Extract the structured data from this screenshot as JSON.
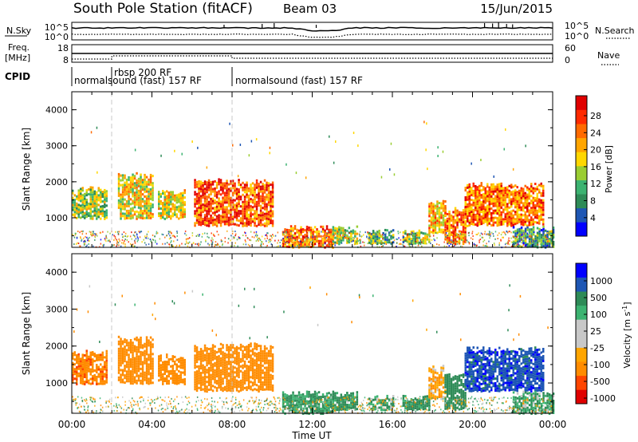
{
  "header": {
    "title": "South Pole Station (fitACF)",
    "beam": "Beam 03",
    "date": "15/Jun/2015"
  },
  "summary_panels": {
    "nsky": {
      "left_label": "N.Sky",
      "right_label": "N.Search",
      "left_ticks": [
        "10^5",
        "10^0"
      ],
      "right_ticks": [
        "10^5",
        "10^0"
      ]
    },
    "freq": {
      "left_label_1": "Freq.",
      "left_label_2": "[MHz]",
      "left_ticks": [
        "18",
        "8"
      ],
      "right_label": "Nave",
      "right_ticks": [
        "60",
        "0"
      ]
    },
    "cpid": {
      "label": "CPID",
      "segments": [
        {
          "text": "normalsound (fast) 157 RF",
          "start_hour": 0
        },
        {
          "text": "rbsp 200 RF",
          "start_hour": 2
        },
        {
          "text": "normalsound (fast) 157 RF",
          "start_hour": 8
        }
      ]
    }
  },
  "chart_data": [
    {
      "type": "heatmap",
      "name": "power",
      "ylabel": "Slant Range [km]",
      "ylim": [
        180,
        4500
      ],
      "yticks": [
        "4000",
        "3000",
        "2000",
        "1000"
      ],
      "xlim": [
        0,
        24
      ],
      "colorbar_label": "Power [dB]",
      "colorbar_ticks": [
        "28",
        "24",
        "20",
        "16",
        "12",
        "8",
        "4"
      ],
      "colorbar_colors": [
        "#0000ff",
        "#1e56b4",
        "#2e8b57",
        "#3cb371",
        "#9acd32",
        "#ffd700",
        "#ffa500",
        "#ff6a00",
        "#ff2a00",
        "#e00000"
      ],
      "dashed_lines_hour": [
        2,
        8
      ],
      "regions": [
        {
          "x": [
            0.0,
            1.7
          ],
          "y": [
            1000,
            1900
          ],
          "value": 14
        },
        {
          "x": [
            2.3,
            4.0
          ],
          "y": [
            1000,
            2300
          ],
          "value": 17
        },
        {
          "x": [
            4.3,
            5.6
          ],
          "y": [
            1000,
            1800
          ],
          "value": 16
        },
        {
          "x": [
            6.1,
            10.0
          ],
          "y": [
            800,
            2100
          ],
          "value": 24
        },
        {
          "x": [
            10.5,
            13.0
          ],
          "y": [
            200,
            800
          ],
          "value": 22
        },
        {
          "x": [
            13.0,
            14.2
          ],
          "y": [
            300,
            800
          ],
          "value": 14
        },
        {
          "x": [
            14.8,
            16.0
          ],
          "y": [
            300,
            700
          ],
          "value": 10
        },
        {
          "x": [
            16.5,
            17.8
          ],
          "y": [
            300,
            700
          ],
          "value": 12
        },
        {
          "x": [
            17.8,
            18.6
          ],
          "y": [
            600,
            1500
          ],
          "value": 19
        },
        {
          "x": [
            18.6,
            19.6
          ],
          "y": [
            300,
            1300
          ],
          "value": 22
        },
        {
          "x": [
            19.6,
            23.5
          ],
          "y": [
            800,
            2000
          ],
          "value": 22
        },
        {
          "x": [
            22.0,
            24.0
          ],
          "y": [
            200,
            800
          ],
          "value": 9
        }
      ]
    },
    {
      "type": "heatmap",
      "name": "velocity",
      "ylabel": "Slant Range [km]",
      "ylim": [
        180,
        4500
      ],
      "yticks": [
        "4000",
        "3000",
        "2000",
        "1000"
      ],
      "xlim": [
        0,
        24
      ],
      "xlabel": "Time UT",
      "xticks": [
        "00:00",
        "04:00",
        "08:00",
        "12:00",
        "16:00",
        "20:00",
        "00:00"
      ],
      "colorbar_label": "Velocity [m s",
      "colorbar_label_sup": "-1",
      "colorbar_label_end": "]",
      "colorbar_ticks": [
        "1000",
        "500",
        "100",
        "25",
        "-25",
        "-100",
        "-500",
        "-1000"
      ],
      "colorbar_colors": [
        "#e00000",
        "#ff4500",
        "#ff8c00",
        "#ffa500",
        "#c8c8c8",
        "#c8c8c8",
        "#3cb371",
        "#2e8b57",
        "#1e56b4",
        "#0000ff"
      ],
      "dashed_lines_hour": [
        2,
        8
      ],
      "regions": [
        {
          "x": [
            0.0,
            1.7
          ],
          "y": [
            1000,
            1900
          ],
          "value": -400
        },
        {
          "x": [
            2.3,
            4.0
          ],
          "y": [
            1000,
            2300
          ],
          "value": -200
        },
        {
          "x": [
            4.3,
            5.6
          ],
          "y": [
            1000,
            1800
          ],
          "value": -200
        },
        {
          "x": [
            6.1,
            10.0
          ],
          "y": [
            800,
            2100
          ],
          "value": -300
        },
        {
          "x": [
            10.5,
            13.0
          ],
          "y": [
            200,
            800
          ],
          "value": 120
        },
        {
          "x": [
            13.0,
            14.2
          ],
          "y": [
            300,
            800
          ],
          "value": 150
        },
        {
          "x": [
            14.8,
            16.0
          ],
          "y": [
            300,
            700
          ],
          "value": 100
        },
        {
          "x": [
            16.5,
            17.8
          ],
          "y": [
            300,
            700
          ],
          "value": 150
        },
        {
          "x": [
            17.8,
            18.6
          ],
          "y": [
            600,
            1500
          ],
          "value": -100
        },
        {
          "x": [
            18.6,
            19.6
          ],
          "y": [
            300,
            1300
          ],
          "value": 200
        },
        {
          "x": [
            19.6,
            23.5
          ],
          "y": [
            800,
            2000
          ],
          "value": 800
        },
        {
          "x": [
            22.0,
            24.0
          ],
          "y": [
            200,
            800
          ],
          "value": 100
        }
      ]
    }
  ]
}
